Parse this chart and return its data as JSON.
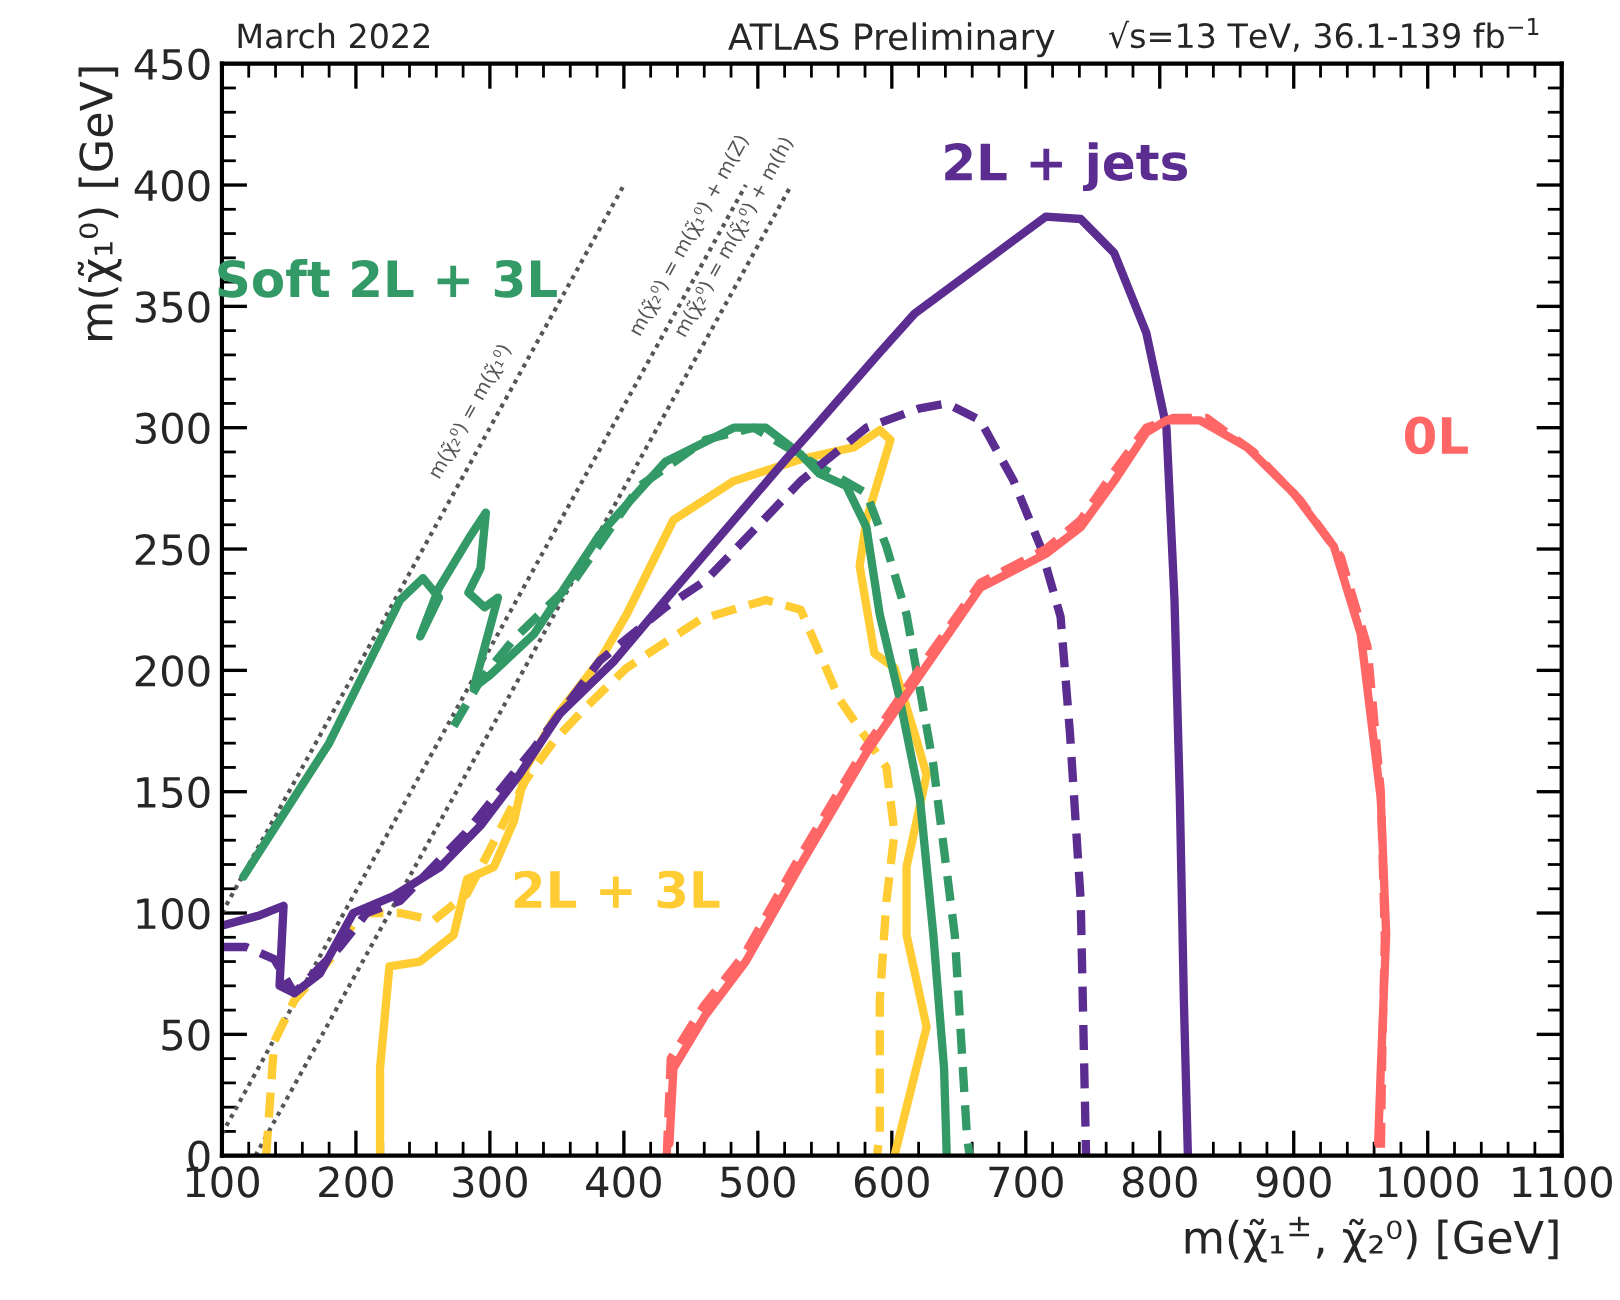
{
  "chart_data": {
    "type": "line",
    "title": "ATLAS Preliminary",
    "xlabel": "m(χ̃₁$^{±}$, χ̃₂⁰) [GeV]",
    "ylabel": "m(χ̃₁⁰) [GeV]",
    "xlim": [
      100,
      1100
    ],
    "ylim": [
      0,
      450
    ],
    "xticks": [
      100,
      200,
      300,
      400,
      500,
      600,
      700,
      800,
      900,
      1000,
      1100
    ],
    "yticks": [
      0,
      50,
      100,
      150,
      200,
      250,
      300,
      350,
      400,
      450
    ],
    "grid": false,
    "legend": false,
    "annotations": [
      "March 2022",
      "√s=13 TeV, 36.1-139 fb$^{−1}$"
    ],
    "series": [
      {
        "name": "m(χ̃₂⁰) = m(χ̃₁⁰)",
        "color": "#555555",
        "line_style": "dotted",
        "x": [
          100,
          400
        ],
        "values": [
          100,
          400
        ]
      },
      {
        "name": "m(χ̃₂⁰) = m(χ̃₁⁰) + m(Z)",
        "color": "#555555",
        "line_style": "dotted",
        "x": [
          100,
          491
        ],
        "values": [
          9,
          400
        ]
      },
      {
        "name": "m(χ̃₂⁰) = m(χ̃₁⁰) + m(h)",
        "color": "#555555",
        "line_style": "dotted",
        "x": [
          125,
          525
        ],
        "values": [
          0,
          400
        ]
      },
      {
        "color": "#ffcc33",
        "line_style": "dashed",
        "x": [
          133,
          139,
          154,
          184,
          203,
          233,
          258,
          283,
          327,
          348,
          372,
          402,
          457,
          506,
          532,
          561,
          596,
          602,
          596,
          591,
          591,
          589
        ],
        "values": [
          0,
          47,
          64,
          83,
          100,
          100,
          97,
          108,
          155,
          171,
          185,
          201,
          221,
          229,
          225,
          188,
          160,
          133,
          105,
          64,
          9,
          0
        ]
      },
      {
        "name": "2L + 3L",
        "color": "#ffcc33",
        "line_style": "solid",
        "x": [
          218,
          218,
          225,
          248,
          273,
          283,
          303,
          318,
          327,
          348,
          382,
          402,
          437,
          482,
          532,
          572,
          591,
          599,
          581,
          576,
          587,
          602,
          617,
          626,
          611,
          611,
          626,
          611,
          602
        ],
        "values": [
          0,
          36,
          78,
          80,
          91,
          114,
          119,
          138,
          160,
          180,
          204,
          223,
          262,
          278,
          287,
          292,
          299,
          295,
          262,
          243,
          207,
          201,
          174,
          157,
          119,
          91,
          53,
          20,
          0
        ]
      },
      {
        "color": "#339966",
        "line_style": "dashed",
        "x": [
          273,
          293,
          318,
          363,
          412,
          461,
          497,
          546,
          581,
          596,
          611,
          631,
          647,
          656,
          658
        ],
        "values": [
          177,
          196,
          213,
          237,
          276,
          295,
          300,
          284,
          273,
          251,
          223,
          161,
          91,
          9,
          0
        ]
      },
      {
        "name": "Soft 2L + 3L",
        "color": "#339966",
        "line_style": "solid",
        "x": [
          116,
          180,
          233,
          250,
          262,
          248,
          262,
          285,
          297,
          293,
          284,
          296,
          306,
          288,
          300,
          333,
          382,
          431,
          482,
          506,
          532,
          546,
          566,
          581,
          591,
          606,
          621,
          631,
          639,
          641
        ],
        "values": [
          115,
          170,
          229,
          238,
          230,
          214,
          234,
          255,
          265,
          242,
          232,
          226,
          230,
          193,
          198,
          215,
          256,
          286,
          300,
          300,
          289,
          281,
          276,
          259,
          223,
          188,
          147,
          91,
          36,
          0
        ]
      },
      {
        "color": "#5c2d91",
        "line_style": "dashed",
        "x": [
          101,
          118,
          139,
          154,
          188,
          208,
          233,
          282,
          333,
          382,
          431,
          461,
          532,
          581,
          621,
          641,
          666,
          691,
          711,
          726,
          733,
          741,
          745
        ],
        "values": [
          86,
          86,
          81,
          67,
          86,
          100,
          105,
          133,
          168,
          204,
          226,
          237,
          278,
          300,
          308,
          310,
          303,
          278,
          251,
          222,
          174,
          105,
          0
        ]
      },
      {
        "name": "2L + jets",
        "color": "#5c2d91",
        "line_style": "solid",
        "x": [
          101,
          128,
          146,
          143,
          154,
          173,
          198,
          228,
          263,
          293,
          322,
          352,
          393,
          431,
          521,
          542,
          591,
          617,
          666,
          715,
          741,
          766,
          790,
          805,
          811,
          815,
          818,
          821
        ],
        "values": [
          95,
          99,
          103,
          70,
          67,
          75,
          100,
          107,
          119,
          136,
          157,
          182,
          204,
          229,
          287,
          300,
          331,
          347,
          367,
          387,
          386,
          372,
          339,
          300,
          229,
          147,
          64,
          0
        ]
      },
      {
        "color": "#ff6666",
        "line_style": "dashed",
        "x": [
          432,
          435,
          460,
          490,
          530,
          580,
          620,
          666,
          715,
          741,
          766,
          790,
          810,
          835,
          870,
          905,
          935,
          955,
          965,
          968,
          966,
          965
        ],
        "values": [
          0,
          40,
          62,
          83,
          122,
          168,
          200,
          236,
          250,
          262,
          282,
          300,
          304,
          304,
          290,
          270,
          247,
          210,
          150,
          90,
          40,
          0
        ]
      },
      {
        "name": "0L",
        "color": "#ff6666",
        "line_style": "solid",
        "x": [
          434,
          437,
          461,
          491,
          531,
          581,
          621,
          666,
          715,
          741,
          766,
          790,
          805,
          830,
          865,
          900,
          930,
          950,
          965,
          969,
          965,
          963
        ],
        "values": [
          5,
          36,
          58,
          80,
          119,
          166,
          198,
          234,
          248,
          259,
          278,
          298,
          303,
          303,
          292,
          273,
          251,
          215,
          147,
          91,
          36,
          5
        ]
      }
    ]
  }
}
